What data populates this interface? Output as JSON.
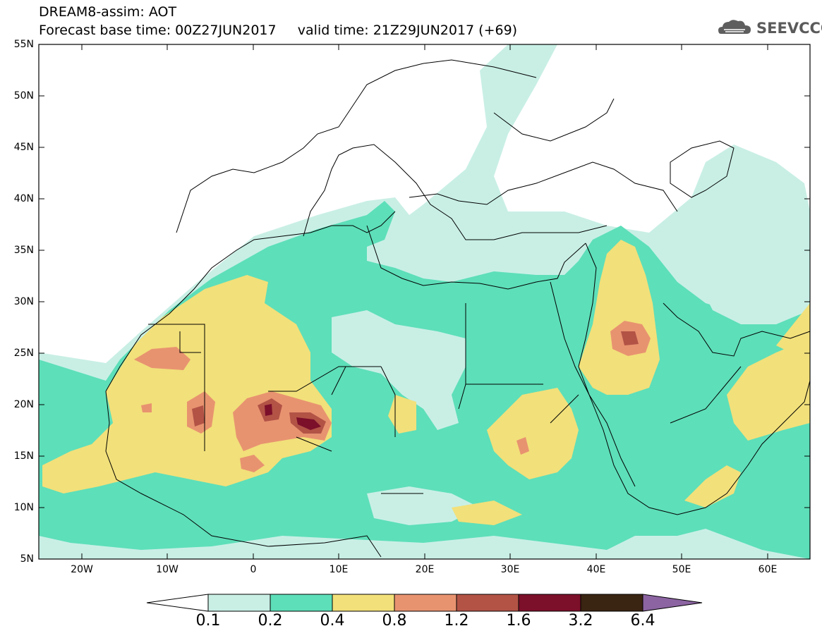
{
  "header": {
    "title_line1": "DREAM8-assim: AOT",
    "title_line2": "Forecast base time: 00Z27JUN2017     valid time: 21Z29JUN2017 (+69)",
    "logo_text": "SEEVCCC"
  },
  "map": {
    "lat_labels": [
      "55N",
      "50N",
      "45N",
      "40N",
      "35N",
      "30N",
      "25N",
      "20N",
      "15N",
      "10N",
      "5N"
    ],
    "lon_labels": [
      "20W",
      "10W",
      "0",
      "10E",
      "20E",
      "30E",
      "40E",
      "50E",
      "60E"
    ],
    "extent": {
      "lon_min": -25,
      "lon_max": 65,
      "lat_min": 5,
      "lat_max": 55
    }
  },
  "colorbar": {
    "labels": [
      "0.1",
      "0.2",
      "0.4",
      "0.8",
      "1.2",
      "1.6",
      "3.2",
      "6.4"
    ],
    "colors": [
      "#ffffff",
      "#c9efe5",
      "#5ddfb9",
      "#f2e07a",
      "#e89370",
      "#b25346",
      "#7c0f2a",
      "#3a2412",
      "#8c64a2"
    ]
  }
}
